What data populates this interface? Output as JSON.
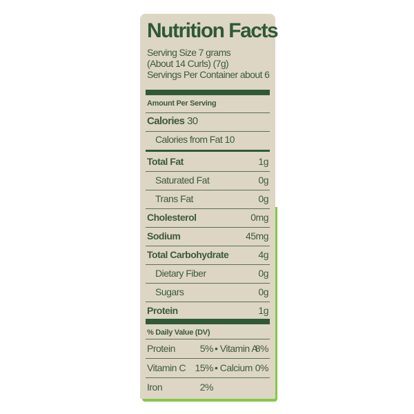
{
  "title": "Nutrition Facts",
  "serving_size": "Serving Size 7 grams",
  "serving_size_detail": "(About 14 Curls) (7g)",
  "servings_per_container": "Servings Per Container about 6",
  "amount_per_serving": "Amount Per Serving",
  "calories": {
    "label": "Calories",
    "value": "30"
  },
  "calories_from_fat": "Calories from Fat 10",
  "nutrients": [
    {
      "label": "Total Fat",
      "value": "1g",
      "bold": true
    },
    {
      "label": "Saturated Fat",
      "value": "0g"
    },
    {
      "label": "Trans Fat",
      "value": "0g"
    },
    {
      "label": "Cholesterol",
      "value": "0mg",
      "bold": true
    },
    {
      "label": "Sodium",
      "value": "45mg",
      "bold": true
    },
    {
      "label": "Total Carbohydrate",
      "value": "4g",
      "bold": true
    },
    {
      "label": "Dietary Fiber",
      "value": "0g"
    },
    {
      "label": "Sugars",
      "value": "0g"
    },
    {
      "label": "Protein",
      "value": "1g",
      "bold": true
    }
  ],
  "daily_value_header": "% Daily Value (DV)",
  "daily_values": [
    {
      "a": "Protein",
      "av": "5%",
      "b": "• Vitamin A",
      "bv": "8%"
    },
    {
      "a": "Vitamin C",
      "av": "15%",
      "b": "• Calcium",
      "bv": "0%"
    },
    {
      "a": "Iron",
      "av": "2%",
      "b": "",
      "bv": ""
    }
  ],
  "colors": {
    "label_bg": "#ddd6c4",
    "ink": "#2f5a35",
    "package_green": "#86c64a"
  }
}
